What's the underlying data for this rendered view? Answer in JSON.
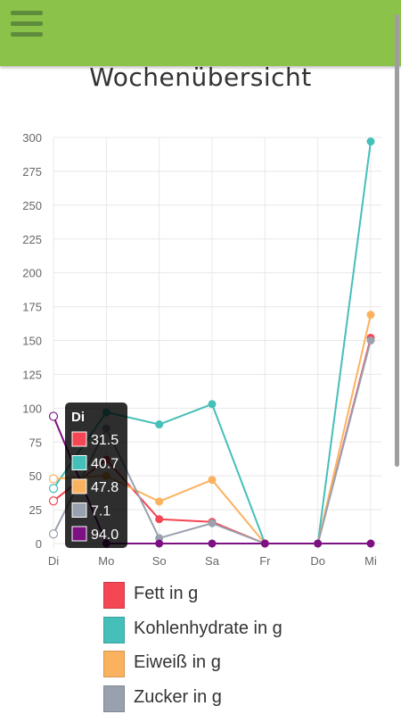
{
  "app": {
    "title": "Wochenübersicht",
    "menu_icon": "hamburger-menu-icon",
    "colors": {
      "appbar": "#8bc34a",
      "menu_icon": "#5f8b3d"
    }
  },
  "legend": [
    {
      "label": "Fett in g",
      "color": "#f44653"
    },
    {
      "label": "Kohlenhydrate in g",
      "color": "#45bfb9"
    },
    {
      "label": "Eiweiß in g",
      "color": "#fbb25f"
    },
    {
      "label": "Zucker in g",
      "color": "#9aa1ae"
    }
  ],
  "tooltip": {
    "title": "Di",
    "rows": [
      {
        "value": "31.5",
        "color": "#f44653"
      },
      {
        "value": "40.7",
        "color": "#45bfb9"
      },
      {
        "value": "47.8",
        "color": "#fbb25f"
      },
      {
        "value": "7.1",
        "color": "#9aa1ae"
      },
      {
        "value": "94.0",
        "color": "#7d1083"
      }
    ]
  },
  "chart_data": {
    "type": "line",
    "title": "Wochenübersicht",
    "categories": [
      "Di",
      "Mo",
      "So",
      "Sa",
      "Fr",
      "Do",
      "Mi"
    ],
    "ylim": [
      0,
      300
    ],
    "yticks": [
      0,
      25,
      50,
      75,
      100,
      125,
      150,
      175,
      200,
      225,
      250,
      275,
      300
    ],
    "grid": true,
    "legend_position": "bottom",
    "series": [
      {
        "name": "Fett in g",
        "color": "#f44653",
        "values": [
          31.5,
          62,
          18,
          16,
          0,
          0,
          152
        ]
      },
      {
        "name": "Kohlenhydrate in g",
        "color": "#45bfb9",
        "values": [
          40.7,
          97,
          88,
          103,
          0,
          0,
          297
        ]
      },
      {
        "name": "Eiweiß in g",
        "color": "#fbb25f",
        "values": [
          47.8,
          50,
          31,
          47,
          0,
          0,
          169
        ]
      },
      {
        "name": "Zucker in g",
        "color": "#9aa1ae",
        "values": [
          7.1,
          85,
          4,
          15,
          0,
          0,
          150
        ]
      },
      {
        "color": "#7d1083",
        "values": [
          94.0,
          0,
          0,
          0,
          0,
          0,
          0
        ]
      }
    ]
  }
}
